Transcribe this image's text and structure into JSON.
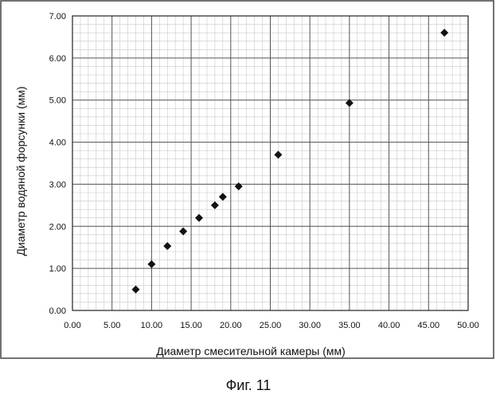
{
  "figure": {
    "caption": "Фиг. 11"
  },
  "chart_data": {
    "type": "scatter",
    "xlabel": "Диаметр смесительной камеры (мм)",
    "ylabel": "Диаметр водяной форсунки (мм)",
    "xlim": [
      0,
      50
    ],
    "ylim": [
      0,
      7
    ],
    "x_ticks": [
      "0.00",
      "5.00",
      "10.00",
      "15.00",
      "20.00",
      "25.00",
      "30.00",
      "35.00",
      "40.00",
      "45.00",
      "50.00"
    ],
    "y_ticks": [
      "0.00",
      "1.00",
      "2.00",
      "3.00",
      "4.00",
      "5.00",
      "6.00",
      "7.00"
    ],
    "grid": true,
    "legend": "none",
    "marker": "diamond",
    "marker_color": "#111111",
    "points": [
      {
        "x": 8,
        "y": 0.5
      },
      {
        "x": 10,
        "y": 1.1
      },
      {
        "x": 12,
        "y": 1.53
      },
      {
        "x": 14,
        "y": 1.88
      },
      {
        "x": 16,
        "y": 2.2
      },
      {
        "x": 18,
        "y": 2.5
      },
      {
        "x": 19,
        "y": 2.7
      },
      {
        "x": 21,
        "y": 2.95
      },
      {
        "x": 26,
        "y": 3.7
      },
      {
        "x": 35,
        "y": 4.93
      },
      {
        "x": 47,
        "y": 6.6
      }
    ]
  }
}
